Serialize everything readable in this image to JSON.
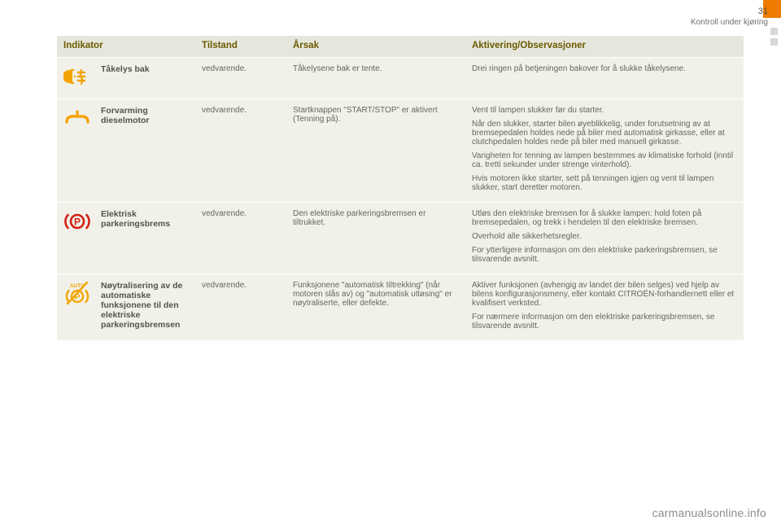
{
  "page_number": "31",
  "section_title": "Kontroll under kjøring",
  "footer": "carmanualsonline.info",
  "colors": {
    "header_bg": "#e6e7dc",
    "header_text": "#6b5a00",
    "cell_bg": "#f1f1ea",
    "cell_text": "#666658",
    "accent_orange": "#ee7a00",
    "icon_amber": "#f3a400",
    "icon_red": "#d42015"
  },
  "columns": {
    "indikator": "Indikator",
    "tilstand": "Tilstand",
    "aarsak": "Årsak",
    "aktivering": "Aktivering/Observasjoner"
  },
  "rows": [
    {
      "icon": "fog-rear",
      "icon_color": "amber",
      "name": "Tåkelys bak",
      "tilstand": "vedvarende.",
      "aarsak": "Tåkelysene bak er tente.",
      "aktivering": "Drei ringen på betjeningen bakover for å slukke tåkelysene."
    },
    {
      "icon": "diesel-preheat",
      "icon_color": "amber",
      "name": "Forvarming dieselmotor",
      "tilstand": "vedvarende.",
      "aarsak": "Startknappen \"START/STOP\" er aktivert (Tenning på).",
      "aktivering": "Vent til lampen slukker før du starter.\nNår den slukker, starter bilen øyeblikkelig, under forutsetning av at bremsepedalen holdes nede på biler med automatisk girkasse, eller at clutchpedalen holdes nede på biler med manuell girkasse.\nVarigheten for tenning av lampen bestemmes av klimatiske forhold (inntil ca. tretti sekunder under strenge vinterhold).\nHvis motoren ikke starter, sett på tenningen igjen og vent til lampen slukker, start deretter motoren."
    },
    {
      "icon": "epb",
      "icon_color": "red",
      "name": "Elektrisk parkeringsbrems",
      "tilstand": "vedvarende.",
      "aarsak": "Den elektriske parkeringsbremsen er tiltrukket.",
      "aktivering": "Utløs den elektriske bremsen for å slukke lampen: hold foten på bremsepedalen, og trekk i hendelen til den elektriske bremsen.\nOverhold alle sikkerhetsregler.\nFor ytterligere informasjon om den elektriske parkeringsbremsen, se tilsvarende avsnitt."
    },
    {
      "icon": "auto-p-off",
      "icon_color": "amber",
      "name": "Nøytralisering av de automatiske funksjonene til den elektriske parkeringsbremsen",
      "tilstand": "vedvarende.",
      "aarsak": "Funksjonene \"automatisk tiltrekking\" (når motoren slås av) og \"automatisk utløsing\" er nøytraliserte, eller defekte.",
      "aktivering": "Aktiver funksjonen (avhengig av landet der bilen selges) ved hjelp av bilens konfigurasjonsmeny, eller kontakt CITROËN-forhandlernett eller et kvalifisert verksted.\nFor nærmere informasjon om den elektriske parkeringsbremsen, se tilsvarende avsnitt."
    }
  ]
}
